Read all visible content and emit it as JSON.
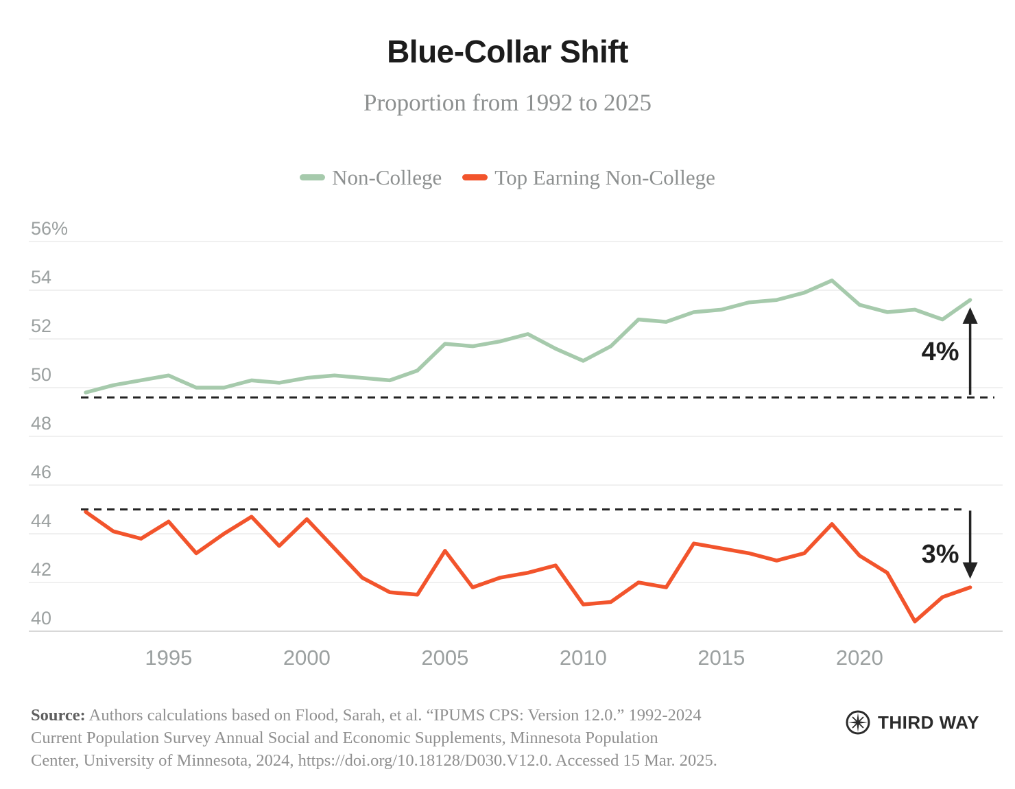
{
  "header": {
    "title": "Blue-Collar Shift",
    "subtitle": "Proportion from 1992 to 2025"
  },
  "legend": [
    {
      "label": "Non-College",
      "color": "#a6caac"
    },
    {
      "label": "Top Earning Non-College",
      "color": "#f2542c"
    }
  ],
  "chart_data": {
    "type": "line",
    "title": "Blue-Collar Shift",
    "subtitle": "Proportion from 1992 to 2025",
    "grid": "horizontal",
    "legend_position": "top",
    "x": [
      1992,
      1993,
      1994,
      1995,
      1996,
      1997,
      1998,
      1999,
      2000,
      2001,
      2002,
      2003,
      2004,
      2005,
      2006,
      2007,
      2008,
      2009,
      2010,
      2011,
      2012,
      2013,
      2014,
      2015,
      2016,
      2017,
      2018,
      2019,
      2020,
      2021,
      2022,
      2023,
      2024
    ],
    "series": [
      {
        "name": "Non-College",
        "color": "#a6caac",
        "values": [
          49.8,
          50.1,
          50.3,
          50.5,
          50.0,
          50.0,
          50.3,
          50.2,
          50.4,
          50.5,
          50.4,
          50.3,
          50.7,
          51.8,
          51.7,
          51.9,
          52.2,
          51.6,
          51.1,
          51.7,
          52.8,
          52.7,
          53.1,
          53.2,
          53.5,
          53.6,
          53.9,
          54.4,
          53.4,
          53.1,
          53.2,
          52.8,
          53.6
        ]
      },
      {
        "name": "Top Earning Non-College",
        "color": "#f2542c",
        "values": [
          44.9,
          44.1,
          43.8,
          44.5,
          43.2,
          44.0,
          44.7,
          43.5,
          44.6,
          43.4,
          42.2,
          41.6,
          41.5,
          43.3,
          41.8,
          42.2,
          42.4,
          42.7,
          41.1,
          41.2,
          42.0,
          41.8,
          43.6,
          43.4,
          43.2,
          42.9,
          43.2,
          44.4,
          43.1,
          42.4,
          40.4,
          41.4,
          41.8
        ]
      }
    ],
    "ylim": [
      40,
      56
    ],
    "yticks": [
      {
        "value": 56,
        "label": "56%"
      },
      {
        "value": 54,
        "label": "54"
      },
      {
        "value": 52,
        "label": "52"
      },
      {
        "value": 50,
        "label": "50"
      },
      {
        "value": 48,
        "label": "48"
      },
      {
        "value": 46,
        "label": "46"
      },
      {
        "value": 44,
        "label": "44"
      },
      {
        "value": 42,
        "label": "42"
      },
      {
        "value": 40,
        "label": "40"
      }
    ],
    "xticks": [
      1995,
      2000,
      2005,
      2010,
      2015,
      2020
    ],
    "annotations": {
      "baselines": [
        {
          "id": "non-college-1992-level",
          "value": 49.6,
          "extends_past_arrow": true
        },
        {
          "id": "top-earning-1992-level",
          "value": 45.0,
          "extends_past_arrow": false
        }
      ],
      "arrows": [
        {
          "label": "4%",
          "direction": "up",
          "at_x": 2024,
          "from": 49.7,
          "to": 53.3
        },
        {
          "label": "3%",
          "direction": "down",
          "at_x": 2024,
          "from": 44.95,
          "to": 42.15
        }
      ]
    },
    "style": {
      "grid_color": "#ececec",
      "axis_line_color": "#d8d8d8",
      "annotation_color": "#232323",
      "tick_label_color": "#9ba0a0"
    }
  },
  "source": {
    "label": "Source:",
    "lines": [
      "Authors calculations based on Flood, Sarah, et al. “IPUMS CPS: Version 12.0.” 1992-2024",
      "Current Population Survey Annual Social and Economic Supplements, Minnesota Population",
      "Center, University of Minnesota, 2024, https://doi.org/10.18128/D030.V12.0. Accessed 15 Mar. 2025."
    ]
  },
  "logo": {
    "text": "THIRD WAY"
  }
}
